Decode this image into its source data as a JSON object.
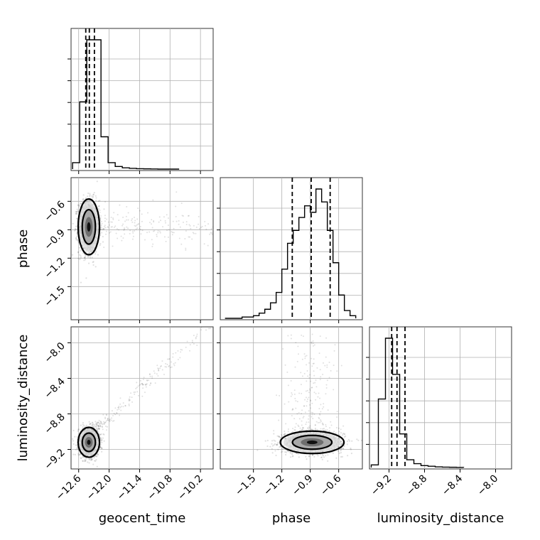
{
  "chart_data": {
    "type": "corner",
    "parameters": [
      {
        "key": "geocent_time",
        "label": "geocent_time",
        "range": [
          -12.75,
          -9.95
        ],
        "ticks": [
          -12.6,
          -12.0,
          -11.4,
          -10.8,
          -10.2
        ],
        "tick_labels": [
          "−12.6",
          "−12.0",
          "−11.4",
          "−10.8",
          "−10.2"
        ],
        "quantiles": [
          -12.46,
          -12.39,
          -12.29
        ]
      },
      {
        "key": "phase",
        "label": "phase",
        "range": [
          -1.85,
          -0.35
        ],
        "ticks": [
          -1.5,
          -1.2,
          -0.9,
          -0.6
        ],
        "tick_labels": [
          "−1.5",
          "−1.2",
          "−0.9",
          "−0.6"
        ],
        "quantiles": [
          -1.09,
          -0.89,
          -0.69
        ]
      },
      {
        "key": "luminosity_distance",
        "label": "luminosity_distance",
        "range": [
          -9.42,
          -7.82
        ],
        "ticks": [
          -9.2,
          -8.8,
          -8.4,
          -8.0
        ],
        "tick_labels": [
          "−9.2",
          "−8.8",
          "−8.4",
          "−8.0"
        ],
        "quantiles": [
          -9.17,
          -9.11,
          -9.02
        ]
      }
    ],
    "histograms": [
      {
        "param": "geocent_time",
        "bin_edges": [
          -12.72,
          -12.58,
          -12.44,
          -12.3,
          -12.16,
          -12.02,
          -11.88,
          -11.74,
          -11.6,
          -11.46,
          -11.32,
          -11.18,
          -11.04,
          -10.9,
          -10.76,
          -10.62
        ],
        "counts": [
          0.05,
          0.52,
          1.0,
          1.0,
          0.25,
          0.05,
          0.02,
          0.01,
          0.006,
          0.003,
          0.002,
          0.001,
          0.0,
          0.0,
          0.0
        ]
      },
      {
        "param": "phase",
        "bin_edges": [
          -1.8,
          -1.74,
          -1.68,
          -1.62,
          -1.56,
          -1.5,
          -1.44,
          -1.38,
          -1.32,
          -1.26,
          -1.2,
          -1.14,
          -1.08,
          -1.02,
          -0.96,
          -0.9,
          -0.84,
          -0.78,
          -0.72,
          -0.66,
          -0.6,
          -0.54,
          -0.48,
          -0.42
        ],
        "counts": [
          0.0,
          0.0,
          0.0,
          0.01,
          0.01,
          0.02,
          0.04,
          0.07,
          0.12,
          0.2,
          0.38,
          0.58,
          0.68,
          0.78,
          0.87,
          0.82,
          1.0,
          0.9,
          0.68,
          0.43,
          0.18,
          0.06,
          0.02
        ]
      },
      {
        "param": "luminosity_distance",
        "bin_edges": [
          -9.4,
          -9.32,
          -9.24,
          -9.16,
          -9.08,
          -9.0,
          -8.92,
          -8.84,
          -8.76,
          -8.68,
          -8.6,
          -8.52,
          -8.44,
          -8.36
        ],
        "counts": [
          0.02,
          0.53,
          1.0,
          0.72,
          0.26,
          0.06,
          0.03,
          0.015,
          0.01,
          0.005,
          0.003,
          0.002,
          0.001
        ]
      }
    ],
    "scatter_2d": [
      {
        "x": "geocent_time",
        "y": "phase",
        "center": [
          -12.4,
          -0.87
        ],
        "spread": [
          0.1,
          0.14
        ],
        "tail": "long tail toward larger geocent_time"
      },
      {
        "x": "geocent_time",
        "y": "luminosity_distance",
        "center": [
          -12.4,
          -9.12
        ],
        "spread": [
          0.1,
          0.08
        ],
        "tail": "linear correlation extending toward upper right"
      },
      {
        "x": "phase",
        "y": "luminosity_distance",
        "center": [
          -0.88,
          -9.12
        ],
        "spread": [
          0.16,
          0.06
        ],
        "tail": "sparse vertical tail toward higher luminosity_distance"
      }
    ],
    "grid": true
  }
}
